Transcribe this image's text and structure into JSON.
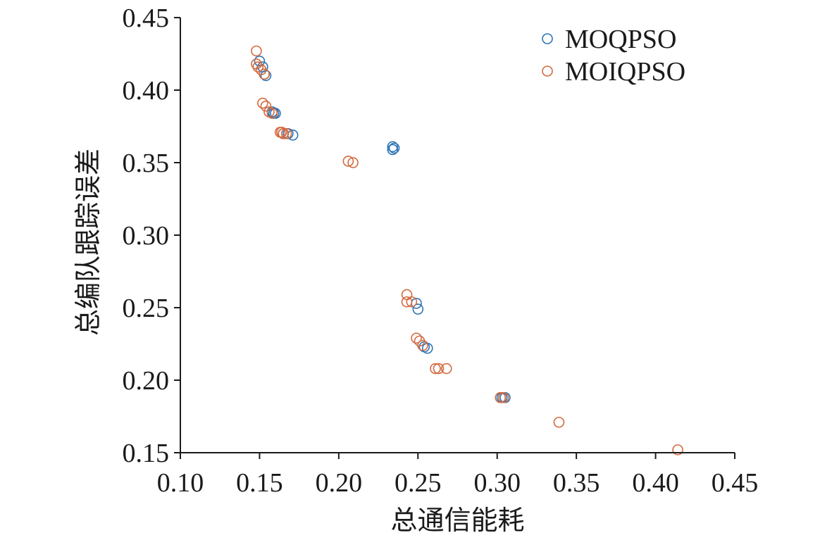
{
  "chart_data": {
    "type": "scatter",
    "title": "",
    "xlabel": "总通信能耗",
    "ylabel": "总编队跟踪误差",
    "xlim": [
      0.1,
      0.45
    ],
    "ylim": [
      0.15,
      0.45
    ],
    "x_ticks": [
      "0.10",
      "0.15",
      "0.20",
      "0.25",
      "0.30",
      "0.35",
      "0.40",
      "0.45"
    ],
    "y_ticks": [
      "0.15",
      "0.20",
      "0.25",
      "0.30",
      "0.35",
      "0.40",
      "0.45"
    ],
    "grid": false,
    "legend_position": "top-right",
    "marker": "open-circle",
    "series": [
      {
        "name": "MOQPSO",
        "color": "#2e75b6",
        "points": [
          [
            0.15,
            0.42
          ],
          [
            0.152,
            0.416
          ],
          [
            0.153,
            0.411
          ],
          [
            0.154,
            0.41
          ],
          [
            0.158,
            0.385
          ],
          [
            0.159,
            0.384
          ],
          [
            0.16,
            0.384
          ],
          [
            0.165,
            0.37
          ],
          [
            0.168,
            0.37
          ],
          [
            0.171,
            0.369
          ],
          [
            0.234,
            0.361
          ],
          [
            0.235,
            0.36
          ],
          [
            0.234,
            0.359
          ],
          [
            0.249,
            0.253
          ],
          [
            0.25,
            0.249
          ],
          [
            0.254,
            0.223
          ],
          [
            0.256,
            0.222
          ],
          [
            0.303,
            0.188
          ],
          [
            0.305,
            0.188
          ]
        ]
      },
      {
        "name": "MOIQPSO",
        "color": "#d46a3f",
        "points": [
          [
            0.148,
            0.427
          ],
          [
            0.148,
            0.418
          ],
          [
            0.149,
            0.416
          ],
          [
            0.151,
            0.414
          ],
          [
            0.153,
            0.411
          ],
          [
            0.152,
            0.391
          ],
          [
            0.154,
            0.389
          ],
          [
            0.156,
            0.385
          ],
          [
            0.158,
            0.384
          ],
          [
            0.163,
            0.371
          ],
          [
            0.164,
            0.371
          ],
          [
            0.165,
            0.37
          ],
          [
            0.167,
            0.37
          ],
          [
            0.206,
            0.351
          ],
          [
            0.209,
            0.35
          ],
          [
            0.243,
            0.259
          ],
          [
            0.243,
            0.254
          ],
          [
            0.246,
            0.254
          ],
          [
            0.249,
            0.229
          ],
          [
            0.251,
            0.227
          ],
          [
            0.253,
            0.224
          ],
          [
            0.261,
            0.208
          ],
          [
            0.263,
            0.208
          ],
          [
            0.268,
            0.208
          ],
          [
            0.302,
            0.188
          ],
          [
            0.304,
            0.188
          ],
          [
            0.339,
            0.171
          ],
          [
            0.414,
            0.152
          ]
        ]
      }
    ]
  }
}
